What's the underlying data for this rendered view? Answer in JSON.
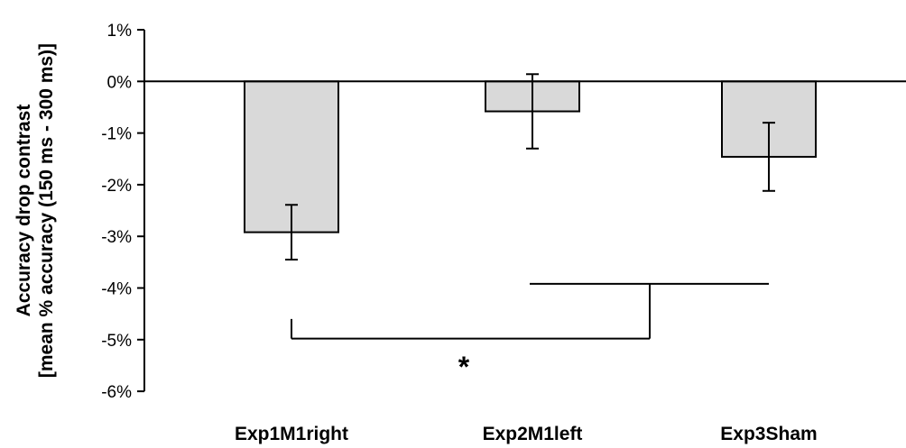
{
  "chart_data": {
    "type": "bar",
    "categories": [
      "Exp1M1right",
      "Exp2M1left",
      "Exp3Sham"
    ],
    "series": [
      {
        "values": [
          -2.92,
          -0.58,
          -1.46
        ],
        "error": [
          0.53,
          0.72,
          0.66
        ],
        "color": "#d9d9d9"
      }
    ],
    "yticks": [
      "1%",
      "0%",
      "-1%",
      "-2%",
      "-3%",
      "-4%",
      "-5%",
      "-6%"
    ],
    "ylim": [
      -6,
      1
    ],
    "ylabel_lines": [
      "Accuracy drop contrast",
      "[mean % accuracy (150 ms - 300 ms)]"
    ],
    "grid": false,
    "annotation": {
      "text": "*",
      "comparison": [
        "Exp1M1right",
        "Exp2M1left + Exp3Sham"
      ]
    }
  }
}
